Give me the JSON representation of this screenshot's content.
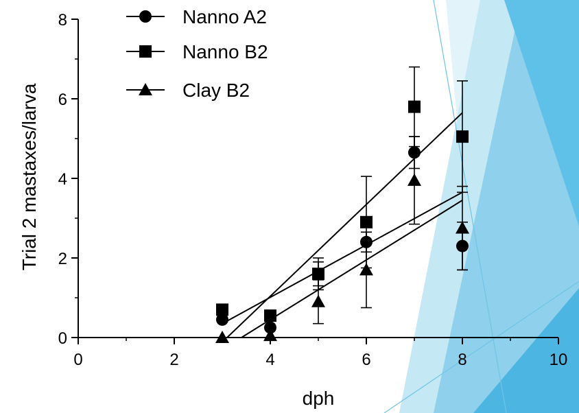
{
  "chart_data": {
    "type": "scatter",
    "xlabel": "dph",
    "ylabel": "Trial 2 mastaxes/larva",
    "xlim": [
      0,
      10
    ],
    "ylim": [
      0,
      8
    ],
    "xticks": [
      0,
      2,
      4,
      6,
      8,
      10
    ],
    "yticks": [
      0,
      2,
      4,
      6,
      8
    ],
    "legend_position": "top-left",
    "series": [
      {
        "name": "Nanno A2",
        "marker": "circle",
        "x": [
          3,
          4,
          5,
          6,
          7,
          8
        ],
        "y": [
          0.45,
          0.25,
          1.6,
          2.4,
          4.65,
          2.3
        ],
        "err": [
          0,
          0,
          0.3,
          0.25,
          0.4,
          0.6
        ],
        "fit": [
          [
            3,
            0.35
          ],
          [
            8,
            3.65
          ]
        ]
      },
      {
        "name": "Nanno B2",
        "marker": "square",
        "x": [
          3,
          4,
          5,
          6,
          7,
          8
        ],
        "y": [
          0.7,
          0.55,
          1.6,
          2.9,
          5.8,
          5.05
        ],
        "err": [
          0,
          0,
          0.4,
          1.15,
          1.0,
          1.4
        ],
        "fit": [
          [
            3.1,
            0
          ],
          [
            8,
            5.65
          ]
        ]
      },
      {
        "name": "Clay B2",
        "marker": "triangle",
        "x": [
          3,
          4,
          5,
          6,
          7,
          8
        ],
        "y": [
          0.0,
          0.05,
          0.9,
          1.7,
          3.95,
          2.75
        ],
        "err": [
          0,
          0,
          0.55,
          0.95,
          1.1,
          1.05
        ],
        "fit": [
          [
            3.4,
            0
          ],
          [
            8,
            3.45
          ]
        ]
      }
    ]
  }
}
